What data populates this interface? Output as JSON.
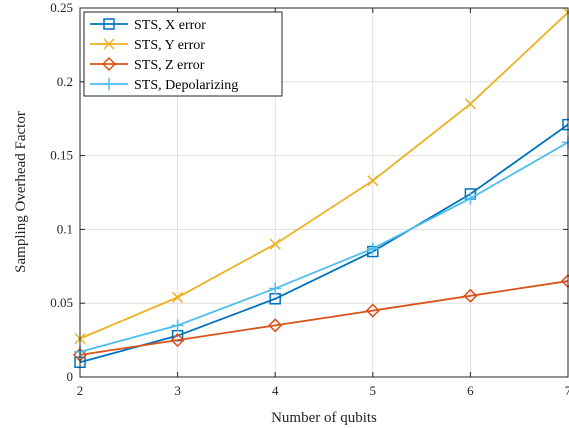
{
  "chart_data": {
    "type": "line",
    "xlabel": "Number of qubits",
    "ylabel": "Sampling Overhead Factor",
    "x": [
      2,
      3,
      4,
      5,
      6,
      7
    ],
    "xlim": [
      2,
      7
    ],
    "ylim": [
      0,
      0.25
    ],
    "xticks": [
      "2",
      "3",
      "4",
      "5",
      "6",
      "7"
    ],
    "yticks": [
      "0",
      "0.05",
      "0.1",
      "0.15",
      "0.2",
      "0.25"
    ],
    "grid": true,
    "legend_position": "top-left",
    "series": [
      {
        "name": "STS, X error",
        "color": "#0072BD",
        "marker": "square",
        "values": [
          0.01,
          0.028,
          0.053,
          0.085,
          0.124,
          0.171
        ]
      },
      {
        "name": "STS, Y error",
        "color": "#EDB120",
        "marker": "x",
        "values": [
          0.026,
          0.054,
          0.09,
          0.133,
          0.185,
          0.247
        ]
      },
      {
        "name": "STS, Z error",
        "color": "#D95319",
        "marker": "diamond",
        "values": [
          0.015,
          0.025,
          0.035,
          0.045,
          0.055,
          0.065
        ]
      },
      {
        "name": "STS, Depolarizing",
        "color": "#4DBEEE",
        "marker": "plus",
        "values": [
          0.017,
          0.035,
          0.06,
          0.087,
          0.121,
          0.159
        ]
      }
    ]
  }
}
